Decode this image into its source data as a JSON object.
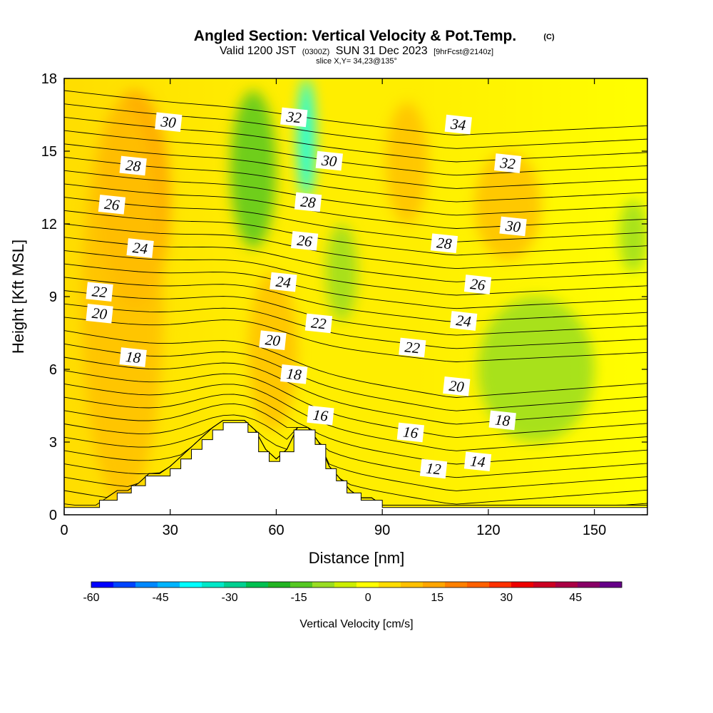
{
  "title": "Angled Section: Vertical Velocity & Pot.Temp.",
  "title_mark": "(C)",
  "subtitle": {
    "valid": "Valid 1200 JST",
    "utc": "(0300Z)",
    "date": "SUN 31 Dec 2023",
    "fcst": "[9hrFcst@2140z]"
  },
  "slice_note": "slice X,Y= 34,23@135°",
  "chart_data": {
    "type": "heatmap",
    "xlabel": "Distance [nm]",
    "ylabel": "Height [Kft MSL]",
    "xlim": [
      0,
      165
    ],
    "ylim": [
      0,
      18
    ],
    "x_ticks": [
      "0",
      "30",
      "60",
      "90",
      "120",
      "150"
    ],
    "y_ticks": [
      "0",
      "3",
      "6",
      "9",
      "12",
      "15",
      "18"
    ],
    "colorbar": {
      "label": "Vertical Velocity [cm/s]",
      "range": [
        -60,
        55
      ],
      "step": 5,
      "tick_labels": [
        "-60",
        "-45",
        "-30",
        "-15",
        "0",
        "15",
        "30",
        "45"
      ],
      "colors": [
        "#0000ff",
        "#0044ff",
        "#0088ff",
        "#00b4ff",
        "#00ffff",
        "#00e8c8",
        "#00d090",
        "#00c050",
        "#22b422",
        "#55c822",
        "#99dd22",
        "#ccee00",
        "#ffff00",
        "#ffdd00",
        "#ffc000",
        "#ffa500",
        "#ff8000",
        "#ff6000",
        "#ff3000",
        "#ee0000",
        "#cc0022",
        "#aa0044",
        "#880066",
        "#660088"
      ]
    },
    "terrain_profile": [
      [
        0,
        0.3
      ],
      [
        10,
        0.3
      ],
      [
        10,
        0.6
      ],
      [
        15,
        0.6
      ],
      [
        15,
        0.9
      ],
      [
        19,
        0.9
      ],
      [
        19,
        1.2
      ],
      [
        23,
        1.2
      ],
      [
        23,
        1.6
      ],
      [
        30,
        1.6
      ],
      [
        30,
        1.9
      ],
      [
        33,
        1.9
      ],
      [
        33,
        2.3
      ],
      [
        36,
        2.3
      ],
      [
        36,
        2.7
      ],
      [
        39,
        2.7
      ],
      [
        39,
        3.1
      ],
      [
        42,
        3.1
      ],
      [
        42,
        3.5
      ],
      [
        45,
        3.5
      ],
      [
        45,
        3.8
      ],
      [
        52,
        3.8
      ],
      [
        52,
        3.4
      ],
      [
        55,
        3.4
      ],
      [
        55,
        2.6
      ],
      [
        58,
        2.6
      ],
      [
        58,
        2.2
      ],
      [
        61,
        2.2
      ],
      [
        61,
        2.6
      ],
      [
        65,
        2.6
      ],
      [
        65,
        3.5
      ],
      [
        71,
        3.5
      ],
      [
        71,
        2.9
      ],
      [
        74,
        2.9
      ],
      [
        74,
        1.9
      ],
      [
        77,
        1.9
      ],
      [
        77,
        1.4
      ],
      [
        80,
        1.4
      ],
      [
        80,
        0.9
      ],
      [
        84,
        0.9
      ],
      [
        84,
        0.6
      ],
      [
        90,
        0.6
      ],
      [
        90,
        0.3
      ],
      [
        165,
        0.3
      ]
    ],
    "theta_contour_labels": [
      {
        "value": "30",
        "x": 29.5,
        "y": 16.2
      },
      {
        "value": "28",
        "x": 19.5,
        "y": 14.4
      },
      {
        "value": "26",
        "x": 13.5,
        "y": 12.8
      },
      {
        "value": "24",
        "x": 21.5,
        "y": 11.0
      },
      {
        "value": "22",
        "x": 10.0,
        "y": 9.2
      },
      {
        "value": "20",
        "x": 10.0,
        "y": 8.3
      },
      {
        "value": "18",
        "x": 19.5,
        "y": 6.5
      },
      {
        "value": "32",
        "x": 65.0,
        "y": 16.4
      },
      {
        "value": "30",
        "x": 75.0,
        "y": 14.6
      },
      {
        "value": "28",
        "x": 69.0,
        "y": 12.9
      },
      {
        "value": "26",
        "x": 68.0,
        "y": 11.3
      },
      {
        "value": "24",
        "x": 62.0,
        "y": 9.6
      },
      {
        "value": "22",
        "x": 72.0,
        "y": 7.9
      },
      {
        "value": "20",
        "x": 59.0,
        "y": 7.2
      },
      {
        "value": "18",
        "x": 65.0,
        "y": 5.8
      },
      {
        "value": "16",
        "x": 72.5,
        "y": 4.1
      },
      {
        "value": "34",
        "x": 111.5,
        "y": 16.1
      },
      {
        "value": "32",
        "x": 125.5,
        "y": 14.5
      },
      {
        "value": "30",
        "x": 127.0,
        "y": 11.9
      },
      {
        "value": "28",
        "x": 107.5,
        "y": 11.2
      },
      {
        "value": "26",
        "x": 117.0,
        "y": 9.5
      },
      {
        "value": "24",
        "x": 113.0,
        "y": 8.0
      },
      {
        "value": "22",
        "x": 98.5,
        "y": 6.9
      },
      {
        "value": "20",
        "x": 111.0,
        "y": 5.3
      },
      {
        "value": "18",
        "x": 124.0,
        "y": 3.9
      },
      {
        "value": "16",
        "x": 98.0,
        "y": 3.4
      },
      {
        "value": "14",
        "x": 117.0,
        "y": 2.2
      },
      {
        "value": "12",
        "x": 104.5,
        "y": 1.9
      }
    ],
    "vertical_velocity_regions": [
      {
        "sign": "up",
        "level": 15,
        "x": [
          10,
          30
        ],
        "y": [
          8.5,
          17.5
        ]
      },
      {
        "sign": "up",
        "level": 10,
        "x": [
          5,
          28
        ],
        "y": [
          0.5,
          17
        ]
      },
      {
        "sign": "down",
        "level": -15,
        "x": [
          47,
          60
        ],
        "y": [
          11,
          17.5
        ]
      },
      {
        "sign": "down",
        "level": -40,
        "x": [
          66,
          71
        ],
        "y": [
          13,
          18
        ]
      },
      {
        "sign": "down",
        "level": -10,
        "x": [
          74,
          83
        ],
        "y": [
          8,
          12
        ]
      },
      {
        "sign": "down",
        "level": -10,
        "x": [
          117,
          150
        ],
        "y": [
          3,
          9
        ]
      },
      {
        "sign": "down",
        "level": -10,
        "x": [
          157,
          165
        ],
        "y": [
          10,
          13
        ]
      },
      {
        "sign": "up",
        "level": 10,
        "x": [
          116,
          135
        ],
        "y": [
          10.5,
          15
        ]
      },
      {
        "sign": "up",
        "level": 10,
        "x": [
          91,
          103
        ],
        "y": [
          12,
          17
        ]
      },
      {
        "sign": "up",
        "level": 10,
        "x": [
          52,
          66
        ],
        "y": [
          3.5,
          10
        ]
      }
    ]
  }
}
